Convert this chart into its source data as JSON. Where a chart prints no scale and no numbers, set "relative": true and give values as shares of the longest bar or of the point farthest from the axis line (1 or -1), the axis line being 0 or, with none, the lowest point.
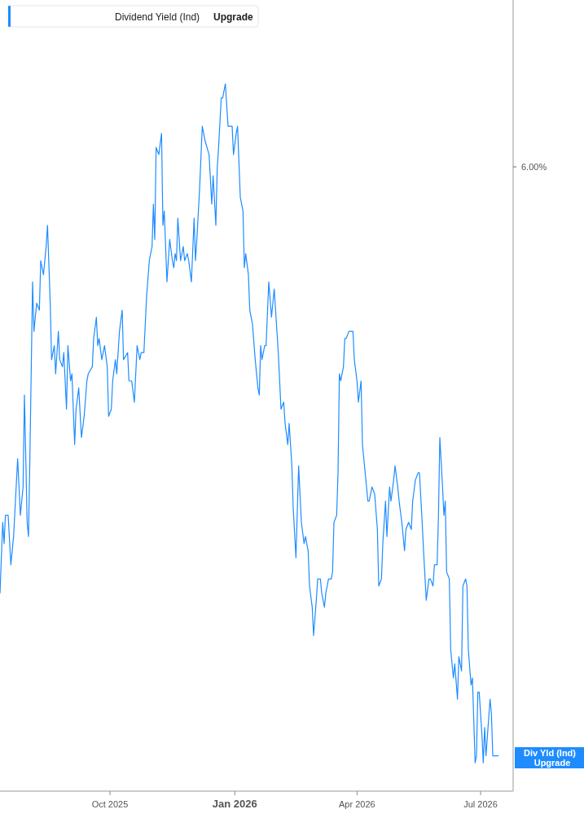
{
  "chart_data": {
    "type": "line",
    "relative": true,
    "legend": "top left",
    "grid": false,
    "marker": "none",
    "line_style": "solid",
    "annotations": [
      "Upgrade",
      "6.00%",
      "Div Yld (Ind)",
      "Upgrade"
    ],
    "xlim": [
      "2025-07-12",
      "2026-07-25"
    ],
    "xticks": [
      {
        "value": "2025-10-01",
        "label": "Oct 2025"
      },
      {
        "value": "2026-01-01",
        "label": "Jan 2026"
      },
      {
        "value": "2026-04-01",
        "label": "Apr 2026"
      },
      {
        "value": "2026-07-01",
        "label": "Jul 2026"
      }
    ],
    "x": [
      "2025-07-12",
      "2025-07-14",
      "2025-07-15",
      "2025-07-16",
      "2025-07-18",
      "2025-07-20",
      "2025-07-22",
      "2025-07-25",
      "2025-07-27",
      "2025-07-29",
      "2025-07-30",
      "2025-08-01",
      "2025-08-02",
      "2025-08-03",
      "2025-08-05",
      "2025-08-06",
      "2025-08-08",
      "2025-08-10",
      "2025-08-11",
      "2025-08-13",
      "2025-08-15",
      "2025-08-16",
      "2025-08-18",
      "2025-08-19",
      "2025-08-21",
      "2025-08-22",
      "2025-08-24",
      "2025-08-25",
      "2025-08-27",
      "2025-08-28",
      "2025-08-30",
      "2025-08-31",
      "2025-09-02",
      "2025-09-03",
      "2025-09-05",
      "2025-09-06",
      "2025-09-08",
      "2025-09-10",
      "2025-09-12",
      "2025-09-14",
      "2025-09-15",
      "2025-09-18",
      "2025-09-19",
      "2025-09-21",
      "2025-09-22",
      "2025-09-23",
      "2025-09-25",
      "2025-09-27",
      "2025-09-29",
      "2025-09-30",
      "2025-10-02",
      "2025-10-03",
      "2025-10-05",
      "2025-10-06",
      "2025-10-08",
      "2025-10-10",
      "2025-10-11",
      "2025-10-14",
      "2025-10-15",
      "2025-10-17",
      "2025-10-19",
      "2025-10-21",
      "2025-10-23",
      "2025-10-24",
      "2025-10-26",
      "2025-10-28",
      "2025-10-30",
      "2025-11-01",
      "2025-11-02",
      "2025-11-03",
      "2025-11-04",
      "2025-11-06",
      "2025-11-08",
      "2025-11-09",
      "2025-11-10",
      "2025-11-12",
      "2025-11-14",
      "2025-11-16",
      "2025-11-17",
      "2025-11-18",
      "2025-11-19",
      "2025-11-20",
      "2025-11-22",
      "2025-11-24",
      "2025-11-25",
      "2025-11-27",
      "2025-11-28",
      "2025-11-30",
      "2025-12-02",
      "2025-12-03",
      "2025-12-04",
      "2025-12-06",
      "2025-12-08",
      "2025-12-10",
      "2025-12-13",
      "2025-12-15",
      "2025-12-16",
      "2025-12-18",
      "2025-12-19",
      "2025-12-20",
      "2025-12-22",
      "2025-12-23",
      "2025-12-25",
      "2025-12-27",
      "2025-12-28",
      "2025-12-30",
      "2025-12-31",
      "2026-01-02",
      "2026-01-03",
      "2026-01-05",
      "2026-01-07",
      "2026-01-08",
      "2026-01-09",
      "2026-01-11",
      "2026-01-12",
      "2026-01-14",
      "2026-01-16",
      "2026-01-18",
      "2026-01-19",
      "2026-01-20",
      "2026-01-21",
      "2026-01-23",
      "2026-01-24",
      "2026-01-26",
      "2026-01-28",
      "2026-01-30",
      "2026-01-31",
      "2026-02-02",
      "2026-02-04",
      "2026-02-06",
      "2026-02-07",
      "2026-02-09",
      "2026-02-10",
      "2026-02-12",
      "2026-02-13",
      "2026-02-15",
      "2026-02-17",
      "2026-02-18",
      "2026-02-19",
      "2026-02-21",
      "2026-02-22",
      "2026-02-24",
      "2026-02-25",
      "2026-02-27",
      "2026-02-28",
      "2026-03-02",
      "2026-03-03",
      "2026-03-05",
      "2026-03-06",
      "2026-03-08",
      "2026-03-09",
      "2026-03-11",
      "2026-03-13",
      "2026-03-14",
      "2026-03-15",
      "2026-03-17",
      "2026-03-18",
      "2026-03-19",
      "2026-03-20",
      "2026-03-22",
      "2026-03-23",
      "2026-03-24",
      "2026-03-26",
      "2026-03-27",
      "2026-03-29",
      "2026-03-30",
      "2026-04-01",
      "2026-04-02",
      "2026-04-04",
      "2026-04-05",
      "2026-04-07",
      "2026-04-09",
      "2026-04-10",
      "2026-04-12",
      "2026-04-14",
      "2026-04-16",
      "2026-04-17",
      "2026-04-19",
      "2026-04-20",
      "2026-04-22",
      "2026-04-23",
      "2026-04-25",
      "2026-04-26",
      "2026-04-28",
      "2026-04-29",
      "2026-05-01",
      "2026-05-02",
      "2026-05-04",
      "2026-05-06",
      "2026-05-07",
      "2026-05-09",
      "2026-05-11",
      "2026-05-12",
      "2026-05-14",
      "2026-05-16",
      "2026-05-17",
      "2026-05-19",
      "2026-05-20",
      "2026-05-22",
      "2026-05-24",
      "2026-05-25",
      "2026-05-27",
      "2026-05-28",
      "2026-05-30",
      "2026-05-31",
      "2026-06-01",
      "2026-06-03",
      "2026-06-04",
      "2026-06-05",
      "2026-06-06",
      "2026-06-08",
      "2026-06-09",
      "2026-06-11",
      "2026-06-12",
      "2026-06-14",
      "2026-06-15",
      "2026-06-17",
      "2026-06-18",
      "2026-06-20",
      "2026-06-21",
      "2026-06-22",
      "2026-06-24",
      "2026-06-25",
      "2026-06-27",
      "2026-06-28",
      "2026-06-29",
      "2026-06-30",
      "2026-07-02",
      "2026-07-03",
      "2026-07-04",
      "2026-07-05",
      "2026-07-08",
      "2026-07-09",
      "2026-07-10",
      "2026-07-12",
      "2026-07-14"
    ],
    "series": [
      {
        "name": "Dividend Yield (Ind)",
        "color": "#1e8cff",
        "values": [
          0.28,
          0.38,
          0.35,
          0.39,
          0.39,
          0.32,
          0.36,
          0.47,
          0.39,
          0.43,
          0.56,
          0.38,
          0.36,
          0.47,
          0.72,
          0.65,
          0.69,
          0.68,
          0.75,
          0.73,
          0.77,
          0.8,
          0.69,
          0.61,
          0.63,
          0.59,
          0.65,
          0.61,
          0.6,
          0.62,
          0.54,
          0.63,
          0.58,
          0.59,
          0.49,
          0.54,
          0.57,
          0.5,
          0.53,
          0.58,
          0.59,
          0.6,
          0.64,
          0.67,
          0.63,
          0.64,
          0.61,
          0.63,
          0.6,
          0.53,
          0.54,
          0.58,
          0.61,
          0.59,
          0.65,
          0.68,
          0.61,
          0.62,
          0.58,
          0.58,
          0.55,
          0.63,
          0.61,
          0.62,
          0.62,
          0.7,
          0.75,
          0.77,
          0.83,
          0.78,
          0.91,
          0.9,
          0.93,
          0.8,
          0.82,
          0.72,
          0.78,
          0.75,
          0.74,
          0.76,
          0.75,
          0.81,
          0.75,
          0.77,
          0.75,
          0.76,
          0.75,
          0.72,
          0.81,
          0.75,
          0.78,
          0.85,
          0.94,
          0.92,
          0.9,
          0.83,
          0.87,
          0.8,
          0.88,
          0.91,
          0.98,
          0.98,
          1.0,
          0.94,
          0.94,
          0.94,
          0.9,
          0.93,
          0.94,
          0.84,
          0.82,
          0.74,
          0.76,
          0.73,
          0.68,
          0.66,
          0.61,
          0.57,
          0.56,
          0.63,
          0.61,
          0.63,
          0.63,
          0.72,
          0.67,
          0.71,
          0.68,
          0.62,
          0.54,
          0.55,
          0.52,
          0.49,
          0.52,
          0.46,
          0.4,
          0.33,
          0.46,
          0.42,
          0.38,
          0.35,
          0.36,
          0.34,
          0.29,
          0.26,
          0.22,
          0.27,
          0.3,
          0.3,
          0.28,
          0.26,
          0.28,
          0.3,
          0.3,
          0.31,
          0.38,
          0.39,
          0.45,
          0.59,
          0.58,
          0.6,
          0.64,
          0.64,
          0.65,
          0.65,
          0.65,
          0.61,
          0.58,
          0.55,
          0.58,
          0.49,
          0.45,
          0.41,
          0.41,
          0.43,
          0.42,
          0.37,
          0.29,
          0.3,
          0.35,
          0.41,
          0.36,
          0.43,
          0.41,
          0.44,
          0.46,
          0.43,
          0.41,
          0.38,
          0.34,
          0.37,
          0.38,
          0.37,
          0.41,
          0.44,
          0.45,
          0.45,
          0.38,
          0.34,
          0.27,
          0.3,
          0.3,
          0.29,
          0.32,
          0.32,
          0.39,
          0.5,
          0.43,
          0.39,
          0.41,
          0.31,
          0.3,
          0.2,
          0.16,
          0.18,
          0.13,
          0.19,
          0.17,
          0.29,
          0.3,
          0.29,
          0.2,
          0.15,
          0.16,
          0.04,
          0.05,
          0.14,
          0.14,
          0.08,
          0.04,
          0.09,
          0.05,
          0.13,
          0.11,
          0.05,
          0.05,
          0.05
        ]
      }
    ]
  }
}
